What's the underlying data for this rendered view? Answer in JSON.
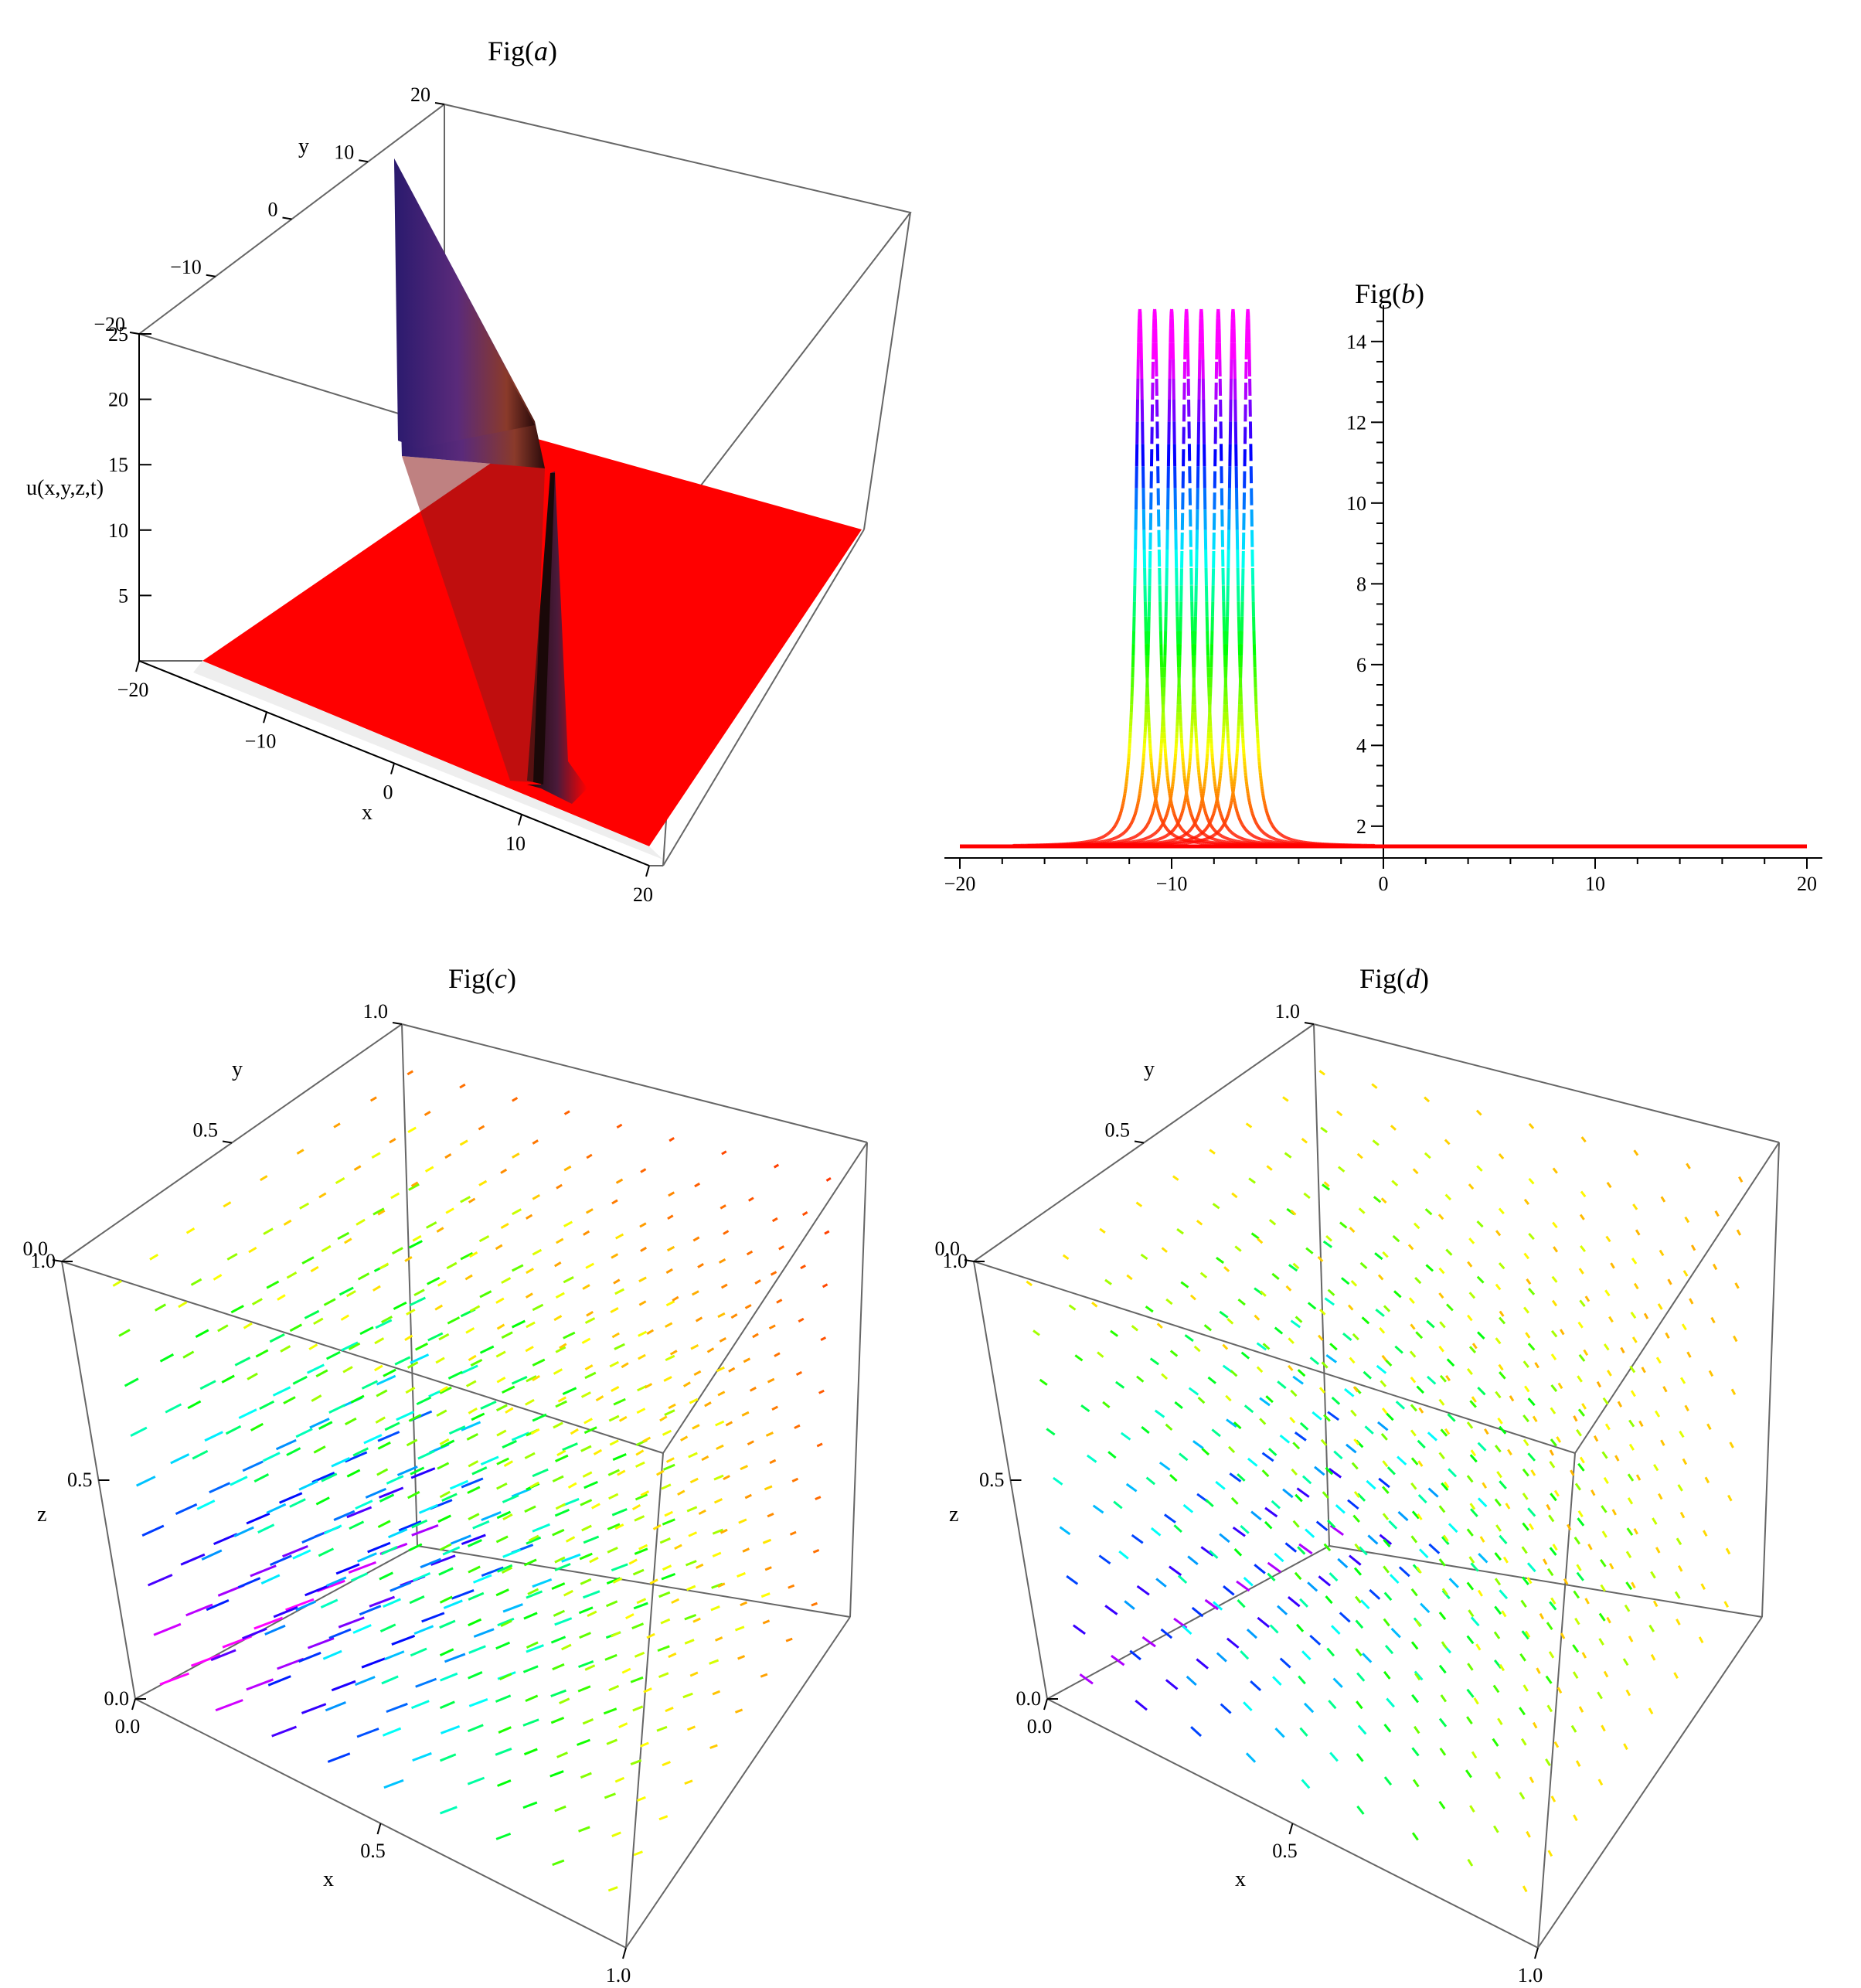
{
  "colors": {
    "frame": "#555555",
    "axis": "#000000",
    "surface": "#ff0000",
    "wall": "#3a1f5c"
  },
  "chart_data": [
    {
      "id": "a",
      "type": "surface3d",
      "title_prefix": "Fig(",
      "title_letter": "a",
      "title_suffix": ")",
      "xlabel": "x",
      "ylabel": "y",
      "zlabel": "u(x,y,z,t)",
      "x_ticks": [
        "−20",
        "−10",
        "0",
        "10",
        "20"
      ],
      "y_ticks": [
        "−20",
        "−10",
        "0",
        "10",
        "20"
      ],
      "z_ticks": [
        "5",
        "10",
        "15",
        "20",
        "25"
      ],
      "xlim": [
        -20,
        20
      ],
      "ylim": [
        -20,
        20
      ],
      "zlim": [
        0,
        25
      ],
      "note": "flat red surface at low u with a sharp ridge along a line in the x-y plane"
    },
    {
      "id": "b",
      "type": "line",
      "title_prefix": "Fig(",
      "title_letter": "b",
      "title_suffix": ")",
      "x_ticks": [
        "−20",
        "−10",
        "0",
        "10",
        "20"
      ],
      "y_ticks": [
        "2",
        "4",
        "6",
        "8",
        "10",
        "12",
        "14"
      ],
      "xlim": [
        -20,
        20
      ],
      "ylim": [
        1.5,
        14.8
      ],
      "baseline": 1.5,
      "series": [
        {
          "center": -11.5,
          "peak": 14.8
        },
        {
          "center": -10.8,
          "peak": 14.8
        },
        {
          "center": -10.0,
          "peak": 14.8
        },
        {
          "center": -9.3,
          "peak": 14.8
        },
        {
          "center": -8.6,
          "peak": 14.8
        },
        {
          "center": -7.8,
          "peak": 14.8
        },
        {
          "center": -7.1,
          "peak": 14.8
        },
        {
          "center": -6.4,
          "peak": 14.8
        }
      ]
    },
    {
      "id": "c",
      "type": "vectorfield3d",
      "title_prefix": "Fig(",
      "title_letter": "c",
      "title_suffix": ")",
      "xlabel": "x",
      "ylabel": "y",
      "zlabel": "z",
      "x_ticks": [
        "0.0",
        "0.5",
        "1.0"
      ],
      "y_ticks": [
        "0.0",
        "0.5",
        "1.0"
      ],
      "z_ticks": [
        "0.0",
        "0.5",
        "1.0"
      ],
      "xlim": [
        0,
        1
      ],
      "ylim": [
        0,
        1
      ],
      "zlim": [
        0,
        1
      ]
    },
    {
      "id": "d",
      "type": "vectorfield3d",
      "title_prefix": "Fig(",
      "title_letter": "d",
      "title_suffix": ")",
      "xlabel": "x",
      "ylabel": "y",
      "zlabel": "z",
      "x_ticks": [
        "0.0",
        "0.5",
        "1.0"
      ],
      "y_ticks": [
        "0.0",
        "0.5",
        "1.0"
      ],
      "z_ticks": [
        "0.0",
        "0.5",
        "1.0"
      ],
      "xlim": [
        0,
        1
      ],
      "ylim": [
        0,
        1
      ],
      "zlim": [
        0,
        1
      ]
    }
  ]
}
